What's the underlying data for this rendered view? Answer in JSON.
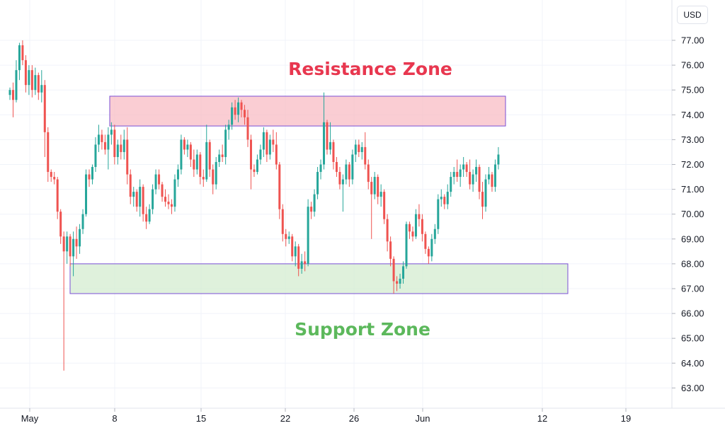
{
  "toolbar": {
    "currency_label": "USD"
  },
  "colors": {
    "up": "#26a69a",
    "down": "#ef5350",
    "resistance_text": "#e8374f",
    "support_text": "#5cb85c",
    "resistance_fill": "#f8bcc4",
    "support_fill": "#d4ecd0",
    "zone_border": "#7b4fd6",
    "grid": "#f0f3fa",
    "axis_text": "#131722"
  },
  "chart_data": {
    "type": "candlestick",
    "title": "",
    "xlabel": "",
    "ylabel": "",
    "ylim": [
      62.4,
      77.6
    ],
    "price_axis": {
      "ticks": [
        "77.00",
        "76.00",
        "75.00",
        "74.00",
        "73.00",
        "72.00",
        "71.00",
        "70.00",
        "69.00",
        "68.00",
        "67.00",
        "66.00",
        "65.00",
        "64.00",
        "63.00"
      ]
    },
    "time_axis": {
      "ticks": [
        "May",
        "8",
        "15",
        "22",
        "26",
        "Jun",
        "12",
        "19"
      ]
    },
    "grid": true,
    "annotations": [
      {
        "kind": "zone",
        "name": "resistance",
        "label": "Resistance Zone",
        "y_low": 73.55,
        "y_high": 74.75
      },
      {
        "kind": "zone",
        "name": "support",
        "label": "Support Zone",
        "y_low": 66.8,
        "y_high": 68.0
      }
    ],
    "candles": [
      [
        74.8,
        75.1,
        74.6,
        75.0
      ],
      [
        75.0,
        75.3,
        73.9,
        74.6
      ],
      [
        74.6,
        76.2,
        74.5,
        75.8
      ],
      [
        75.8,
        76.9,
        75.4,
        76.8
      ],
      [
        76.8,
        77.0,
        76.0,
        76.2
      ],
      [
        76.2,
        76.4,
        74.9,
        75.2
      ],
      [
        75.2,
        76.0,
        74.8,
        75.8
      ],
      [
        75.8,
        76.0,
        74.7,
        75.0
      ],
      [
        75.0,
        75.9,
        74.8,
        75.6
      ],
      [
        75.6,
        75.7,
        74.6,
        74.9
      ],
      [
        74.9,
        75.8,
        74.5,
        75.2
      ],
      [
        75.2,
        75.4,
        72.3,
        73.3
      ],
      [
        73.3,
        73.5,
        71.3,
        71.7
      ],
      [
        71.7,
        71.8,
        71.3,
        71.5
      ],
      [
        71.5,
        71.7,
        71.2,
        71.4
      ],
      [
        71.4,
        71.5,
        69.8,
        70.1
      ],
      [
        70.1,
        70.2,
        68.8,
        69.1
      ],
      [
        69.1,
        69.3,
        63.7,
        68.5
      ],
      [
        68.5,
        69.3,
        68.0,
        69.1
      ],
      [
        69.1,
        69.2,
        67.9,
        68.3
      ],
      [
        68.3,
        69.3,
        67.5,
        69.0
      ],
      [
        69.0,
        69.5,
        68.2,
        68.7
      ],
      [
        68.7,
        69.6,
        68.4,
        69.4
      ],
      [
        69.4,
        70.2,
        69.2,
        70.0
      ],
      [
        70.0,
        71.8,
        69.9,
        71.6
      ],
      [
        71.6,
        71.8,
        71.1,
        71.4
      ],
      [
        71.4,
        72.0,
        71.2,
        71.9
      ],
      [
        71.9,
        73.1,
        71.7,
        72.8
      ],
      [
        72.8,
        73.6,
        72.5,
        73.2
      ],
      [
        73.2,
        73.4,
        72.6,
        72.9
      ],
      [
        72.9,
        73.2,
        72.4,
        72.6
      ],
      [
        72.6,
        73.5,
        71.8,
        73.2
      ],
      [
        73.2,
        73.7,
        72.8,
        73.4
      ],
      [
        73.4,
        73.6,
        72.0,
        72.3
      ],
      [
        72.3,
        73.0,
        72.0,
        72.8
      ],
      [
        72.8,
        73.2,
        72.2,
        72.5
      ],
      [
        72.5,
        73.4,
        72.2,
        73.0
      ],
      [
        73.0,
        73.5,
        71.2,
        71.6
      ],
      [
        71.6,
        71.8,
        70.4,
        70.7
      ],
      [
        70.7,
        71.1,
        70.3,
        70.9
      ],
      [
        70.9,
        71.0,
        70.1,
        70.3
      ],
      [
        70.3,
        71.4,
        69.9,
        71.1
      ],
      [
        71.1,
        71.2,
        69.7,
        70.0
      ],
      [
        70.0,
        70.3,
        69.4,
        69.7
      ],
      [
        69.7,
        70.4,
        69.6,
        70.2
      ],
      [
        70.2,
        71.2,
        70.0,
        71.0
      ],
      [
        71.0,
        71.8,
        70.8,
        71.6
      ],
      [
        71.6,
        71.8,
        71.0,
        71.2
      ],
      [
        71.2,
        71.3,
        70.5,
        70.7
      ],
      [
        70.7,
        71.0,
        70.3,
        70.5
      ],
      [
        70.5,
        70.8,
        70.2,
        70.4
      ],
      [
        70.4,
        70.6,
        70.0,
        70.3
      ],
      [
        70.3,
        71.6,
        70.1,
        71.4
      ],
      [
        71.4,
        72.0,
        71.1,
        71.8
      ],
      [
        71.8,
        73.2,
        71.6,
        73.0
      ],
      [
        73.0,
        73.1,
        72.4,
        72.6
      ],
      [
        72.6,
        73.0,
        72.3,
        72.8
      ],
      [
        72.8,
        72.9,
        71.9,
        72.2
      ],
      [
        72.2,
        72.6,
        71.5,
        71.8
      ],
      [
        71.8,
        72.6,
        71.6,
        72.4
      ],
      [
        72.4,
        72.5,
        71.2,
        71.5
      ],
      [
        71.5,
        71.8,
        71.1,
        71.4
      ],
      [
        71.4,
        73.6,
        71.3,
        72.9
      ],
      [
        72.9,
        73.0,
        71.5,
        71.8
      ],
      [
        71.8,
        72.0,
        70.8,
        71.2
      ],
      [
        71.2,
        72.3,
        71.0,
        72.1
      ],
      [
        72.1,
        72.6,
        71.9,
        72.4
      ],
      [
        72.4,
        72.8,
        72.1,
        72.3
      ],
      [
        72.3,
        73.6,
        72.0,
        73.4
      ],
      [
        73.4,
        73.8,
        73.0,
        73.6
      ],
      [
        73.6,
        74.5,
        73.4,
        74.3
      ],
      [
        74.3,
        74.6,
        73.8,
        74.0
      ],
      [
        74.0,
        74.7,
        73.7,
        74.5
      ],
      [
        74.5,
        74.6,
        73.9,
        74.2
      ],
      [
        74.2,
        74.4,
        73.6,
        73.9
      ],
      [
        73.9,
        74.2,
        72.7,
        73.0
      ],
      [
        73.0,
        73.2,
        71.0,
        71.8
      ],
      [
        71.8,
        72.0,
        71.5,
        71.7
      ],
      [
        71.7,
        72.4,
        71.6,
        72.2
      ],
      [
        72.2,
        72.8,
        72.0,
        72.6
      ],
      [
        72.6,
        73.5,
        72.3,
        73.3
      ],
      [
        73.3,
        73.4,
        72.1,
        72.4
      ],
      [
        72.4,
        73.2,
        72.2,
        73.0
      ],
      [
        73.0,
        73.4,
        72.5,
        72.8
      ],
      [
        72.8,
        73.3,
        71.8,
        72.0
      ],
      [
        72.0,
        72.1,
        69.8,
        70.2
      ],
      [
        70.2,
        70.4,
        68.9,
        69.2
      ],
      [
        69.2,
        69.4,
        68.7,
        69.0
      ],
      [
        69.0,
        69.3,
        68.8,
        69.1
      ],
      [
        69.1,
        69.2,
        68.1,
        68.3
      ],
      [
        68.3,
        68.9,
        67.9,
        68.7
      ],
      [
        68.7,
        68.8,
        67.5,
        67.8
      ],
      [
        67.8,
        68.4,
        67.6,
        68.1
      ],
      [
        68.1,
        68.5,
        67.7,
        68.0
      ],
      [
        68.0,
        70.6,
        67.9,
        70.3
      ],
      [
        70.3,
        70.5,
        69.8,
        70.1
      ],
      [
        70.1,
        71.0,
        69.9,
        70.8
      ],
      [
        70.8,
        71.9,
        70.6,
        71.7
      ],
      [
        71.7,
        72.2,
        71.4,
        72.0
      ],
      [
        72.0,
        74.9,
        71.8,
        73.7
      ],
      [
        73.7,
        73.8,
        72.4,
        72.6
      ],
      [
        72.6,
        73.7,
        72.4,
        72.9
      ],
      [
        72.9,
        73.0,
        71.8,
        72.1
      ],
      [
        72.1,
        72.3,
        71.5,
        71.7
      ],
      [
        71.7,
        71.9,
        71.0,
        71.2
      ],
      [
        71.2,
        71.6,
        70.1,
        71.4
      ],
      [
        71.4,
        72.2,
        71.2,
        72.0
      ],
      [
        72.0,
        72.1,
        71.1,
        71.4
      ],
      [
        71.4,
        72.6,
        71.2,
        72.4
      ],
      [
        72.4,
        73.0,
        72.1,
        72.8
      ],
      [
        72.8,
        73.0,
        72.3,
        72.5
      ],
      [
        72.5,
        72.9,
        72.2,
        72.7
      ],
      [
        72.7,
        73.3,
        71.8,
        72.0
      ],
      [
        72.0,
        72.2,
        71.0,
        71.3
      ],
      [
        71.3,
        71.5,
        69.0,
        70.8
      ],
      [
        70.8,
        71.7,
        70.6,
        71.5
      ],
      [
        71.5,
        71.6,
        70.4,
        70.7
      ],
      [
        70.7,
        71.2,
        70.3,
        70.9
      ],
      [
        70.9,
        71.0,
        69.6,
        69.8
      ],
      [
        69.8,
        70.0,
        68.5,
        68.9
      ],
      [
        68.9,
        69.1,
        67.9,
        68.2
      ],
      [
        68.2,
        68.3,
        66.8,
        67.3
      ],
      [
        67.3,
        67.5,
        66.9,
        67.2
      ],
      [
        67.2,
        67.6,
        67.0,
        67.4
      ],
      [
        67.4,
        68.1,
        67.2,
        67.9
      ],
      [
        67.9,
        69.7,
        67.8,
        69.6
      ],
      [
        69.6,
        69.7,
        69.0,
        69.3
      ],
      [
        69.3,
        69.5,
        68.9,
        69.1
      ],
      [
        69.1,
        70.2,
        69.0,
        70.0
      ],
      [
        70.0,
        70.4,
        69.5,
        69.8
      ],
      [
        69.8,
        70.0,
        68.9,
        69.2
      ],
      [
        69.2,
        69.3,
        68.4,
        68.6
      ],
      [
        68.6,
        68.7,
        68.0,
        68.3
      ],
      [
        68.3,
        69.2,
        68.1,
        69.0
      ],
      [
        69.0,
        69.6,
        68.8,
        69.4
      ],
      [
        69.4,
        70.8,
        69.2,
        70.6
      ],
      [
        70.6,
        71.0,
        70.3,
        70.7
      ],
      [
        70.7,
        70.8,
        70.2,
        70.4
      ],
      [
        70.4,
        71.2,
        70.2,
        70.9
      ],
      [
        70.9,
        71.7,
        70.7,
        71.5
      ],
      [
        71.5,
        71.9,
        71.2,
        71.7
      ],
      [
        71.7,
        72.2,
        71.3,
        71.5
      ],
      [
        71.5,
        72.0,
        71.1,
        71.8
      ],
      [
        71.8,
        72.3,
        71.5,
        72.0
      ],
      [
        72.0,
        72.1,
        71.5,
        71.7
      ],
      [
        71.7,
        72.2,
        71.0,
        71.2
      ],
      [
        71.2,
        71.8,
        70.9,
        71.6
      ],
      [
        71.6,
        72.2,
        71.3,
        71.9
      ],
      [
        71.9,
        72.0,
        70.6,
        70.9
      ],
      [
        70.9,
        71.3,
        69.8,
        70.3
      ],
      [
        70.3,
        71.6,
        70.1,
        71.4
      ],
      [
        71.4,
        71.9,
        71.2,
        71.6
      ],
      [
        71.6,
        71.7,
        70.9,
        71.1
      ],
      [
        71.1,
        72.2,
        70.9,
        72.0
      ],
      [
        72.0,
        72.7,
        71.8,
        72.4
      ]
    ]
  },
  "annotations_text": {
    "resistance": "Resistance Zone",
    "support": "Support Zone"
  }
}
